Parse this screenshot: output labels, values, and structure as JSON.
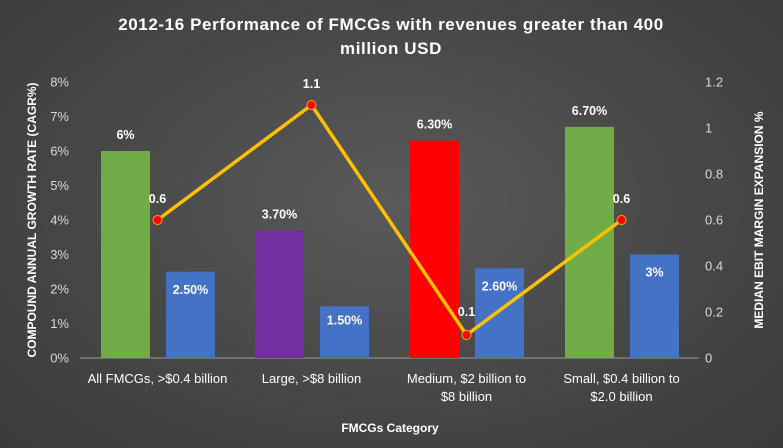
{
  "chart_data": {
    "type": "bar",
    "title_lines": [
      "2012-16 Performance of FMCGs with revenues greater than 400",
      "million USD"
    ],
    "xlabel": "FMCGs Category",
    "ylabel": "COMPOUND ANNUAL GROWTH RATE (CAGR%)",
    "y2label": "MEDIAN EBIT MARGIN EXPANSION %",
    "ylim": [
      0,
      8
    ],
    "y_ticks": [
      "0%",
      "1%",
      "2%",
      "3%",
      "4%",
      "5%",
      "6%",
      "7%",
      "8%"
    ],
    "y2lim": [
      0,
      1.2
    ],
    "y2_ticks": [
      "0",
      "0.2",
      "0.4",
      "0.6",
      "0.8",
      "1",
      "1.2"
    ],
    "categories": [
      [
        "All FMCGs, >$0.4 billion"
      ],
      [
        "Large, >$8 billion"
      ],
      [
        "Medium, $2 billion to",
        "$8 billion"
      ],
      [
        "Small, $0.4 billion to",
        "$2.0 billion"
      ]
    ],
    "series": [
      {
        "kind": "bar",
        "values": [
          6.0,
          3.7,
          6.3,
          6.7
        ],
        "labels": [
          "6%",
          "3.70%",
          "6.30%",
          "6.70%"
        ],
        "colors": [
          "#70ad47",
          "#7030a0",
          "#ff0000",
          "#70ad47"
        ]
      },
      {
        "kind": "bar",
        "values": [
          2.5,
          1.5,
          2.6,
          3.0
        ],
        "labels": [
          "2.50%",
          "1.50%",
          "2.60%",
          "3%"
        ],
        "colors": [
          "#4472c4",
          "#4472c4",
          "#4472c4",
          "#4472c4"
        ]
      },
      {
        "kind": "line",
        "axis": "secondary",
        "values": [
          0.6,
          1.1,
          0.1,
          0.6
        ],
        "labels": [
          "0.6",
          "1.1",
          "0.1",
          "0.6"
        ],
        "color": "#ffc000",
        "marker_color": "#ff0000"
      }
    ],
    "grid": false,
    "legend": "none"
  }
}
